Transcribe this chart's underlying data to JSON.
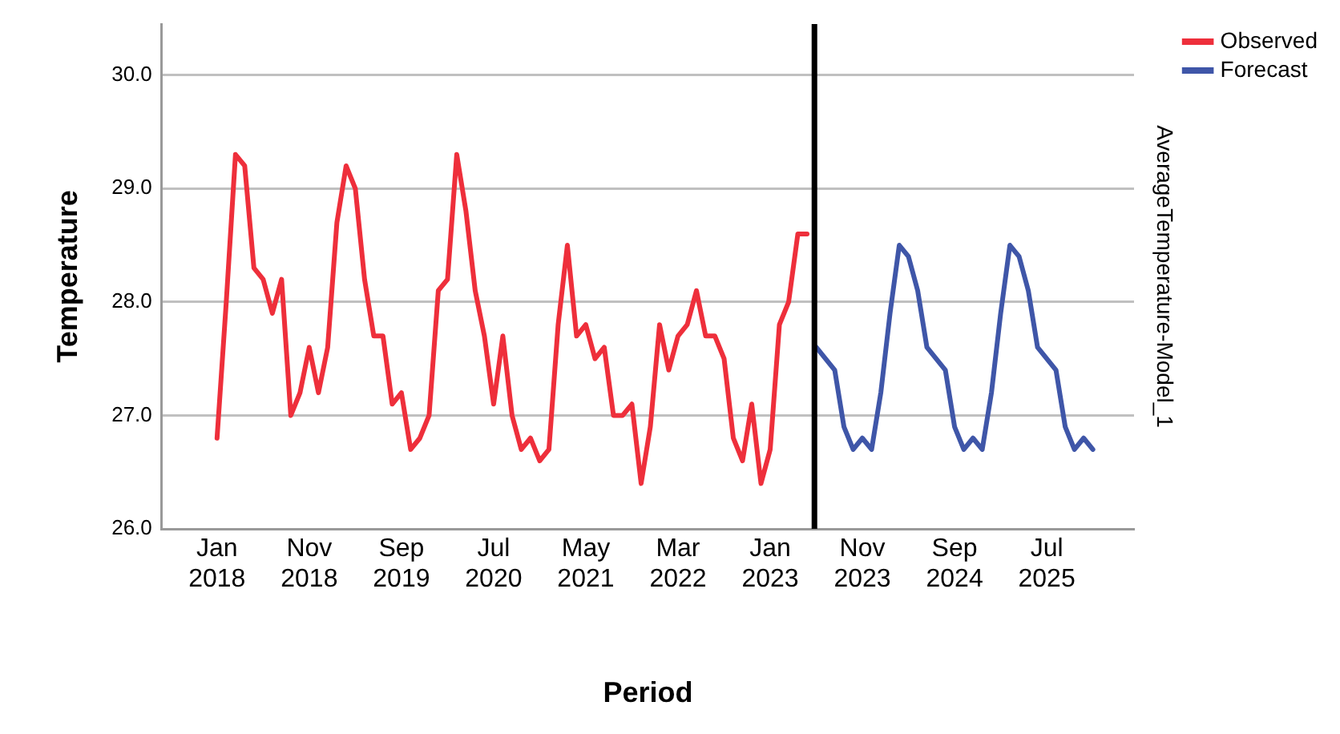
{
  "chart_data": {
    "type": "line",
    "xlabel": "Period",
    "ylabel": "Temperature",
    "y2label": "AverageTemperature-Model_1",
    "xlim": [
      "2017-07",
      "2026-04-15"
    ],
    "xticks": [
      {
        "value": "2018-01",
        "label": "Jan 2018"
      },
      {
        "value": "2018-11",
        "label": "Nov 2018"
      },
      {
        "value": "2019-09",
        "label": "Sep 2019"
      },
      {
        "value": "2020-07",
        "label": "Jul 2020"
      },
      {
        "value": "2021-05",
        "label": "May 2021"
      },
      {
        "value": "2022-03",
        "label": "Mar 2022"
      },
      {
        "value": "2023-01",
        "label": "Jan 2023"
      },
      {
        "value": "2023-11",
        "label": "Nov 2023"
      },
      {
        "value": "2024-09",
        "label": "Sep 2024"
      },
      {
        "value": "2025-07",
        "label": "Jul 2025"
      }
    ],
    "ylim": [
      26.0,
      30.45
    ],
    "yticks": [
      {
        "value": 26,
        "label": "26.0"
      },
      {
        "value": 27,
        "label": "27.0"
      },
      {
        "value": 28,
        "label": "28.0"
      },
      {
        "value": 29,
        "label": "29.0"
      },
      {
        "value": 30,
        "label": "30.0"
      }
    ],
    "grid": "y",
    "legend": "top right",
    "marker": "none",
    "line_style": "solid",
    "ref_lines": [
      {
        "axis": "x",
        "value": "2023-05-25",
        "color": "#000000"
      }
    ],
    "series": [
      {
        "name": "Observed",
        "color": "#ee2f3b",
        "x": [
          "2018-01",
          "2018-02",
          "2018-03",
          "2018-04",
          "2018-05",
          "2018-06",
          "2018-07",
          "2018-08",
          "2018-09",
          "2018-10",
          "2018-11",
          "2018-12",
          "2019-01",
          "2019-02",
          "2019-03",
          "2019-04",
          "2019-05",
          "2019-06",
          "2019-07",
          "2019-08",
          "2019-09",
          "2019-10",
          "2019-11",
          "2019-12",
          "2020-01",
          "2020-02",
          "2020-03",
          "2020-04",
          "2020-05",
          "2020-06",
          "2020-07",
          "2020-08",
          "2020-09",
          "2020-10",
          "2020-11",
          "2020-12",
          "2021-01",
          "2021-02",
          "2021-03",
          "2021-04",
          "2021-05",
          "2021-06",
          "2021-07",
          "2021-08",
          "2021-09",
          "2021-10",
          "2021-11",
          "2021-12",
          "2022-01",
          "2022-02",
          "2022-03",
          "2022-04",
          "2022-05",
          "2022-06",
          "2022-07",
          "2022-08",
          "2022-09",
          "2022-10",
          "2022-11",
          "2022-12",
          "2023-01",
          "2023-02",
          "2023-03",
          "2023-04",
          "2023-05"
        ],
        "values": [
          26.8,
          28.0,
          29.3,
          29.2,
          28.3,
          28.2,
          27.9,
          28.2,
          27.0,
          27.2,
          27.6,
          27.2,
          27.6,
          28.7,
          29.2,
          29.0,
          28.2,
          27.7,
          27.7,
          27.1,
          27.2,
          26.7,
          26.8,
          27.0,
          28.1,
          28.2,
          29.3,
          28.8,
          28.1,
          27.7,
          27.1,
          27.7,
          27.0,
          26.7,
          26.8,
          26.6,
          26.7,
          27.8,
          28.5,
          27.7,
          27.8,
          27.5,
          27.6,
          27.0,
          27.0,
          27.1,
          26.4,
          26.9,
          27.8,
          27.4,
          27.7,
          27.8,
          28.1,
          27.7,
          27.7,
          27.5,
          26.8,
          26.6,
          27.1,
          26.4,
          26.7,
          27.8,
          28.0,
          28.6,
          28.6
        ]
      },
      {
        "name": "Forecast",
        "color": "#3f56a8",
        "x": [
          "2023-06",
          "2023-07",
          "2023-08",
          "2023-09",
          "2023-10",
          "2023-11",
          "2023-12",
          "2024-01",
          "2024-02",
          "2024-03",
          "2024-04",
          "2024-05",
          "2024-06",
          "2024-07",
          "2024-08",
          "2024-09",
          "2024-10",
          "2024-11",
          "2024-12",
          "2025-01",
          "2025-02",
          "2025-03",
          "2025-04",
          "2025-05",
          "2025-06",
          "2025-07",
          "2025-08",
          "2025-09",
          "2025-10",
          "2025-11",
          "2025-12"
        ],
        "values": [
          27.6,
          27.5,
          27.4,
          26.9,
          26.7,
          26.8,
          26.7,
          27.2,
          27.9,
          28.5,
          28.4,
          28.1,
          27.6,
          27.5,
          27.4,
          26.9,
          26.7,
          26.8,
          26.7,
          27.2,
          27.9,
          28.5,
          28.4,
          28.1,
          27.6,
          27.5,
          27.4,
          26.9,
          26.7,
          26.8,
          26.7
        ]
      }
    ]
  }
}
